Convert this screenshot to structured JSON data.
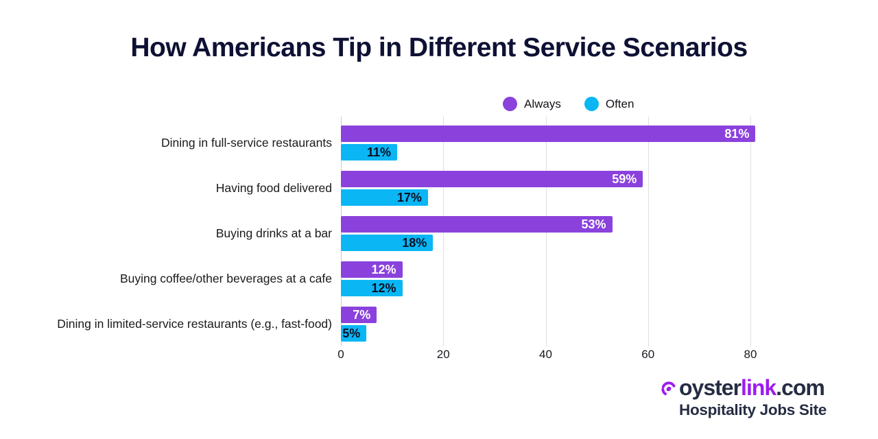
{
  "title": "How Americans Tip in Different Service Scenarios",
  "background_color": "#FFFFFF",
  "legend": {
    "items": [
      {
        "label": "Always",
        "color": "#8B42DC"
      },
      {
        "label": "Often",
        "color": "#0AB6F4"
      }
    ]
  },
  "chart_data": {
    "type": "bar",
    "orientation": "horizontal",
    "title": "How Americans Tip in Different Service Scenarios",
    "categories": [
      "Dining in full-service restaurants",
      "Having food delivered",
      "Buying drinks at a bar",
      "Buying coffee/other beverages at a cafe",
      "Dining in limited-service restaurants (e.g., fast-food)"
    ],
    "series": [
      {
        "name": "Always",
        "color": "#8B42DC",
        "label_color": "#FFFFFF",
        "values": [
          81,
          59,
          53,
          12,
          7
        ]
      },
      {
        "name": "Often",
        "color": "#0AB6F4",
        "label_color": "#0B0F23",
        "values": [
          11,
          17,
          18,
          12,
          5
        ]
      }
    ],
    "value_suffix": "%",
    "xlabel": "",
    "ylabel": "",
    "xlim": [
      0,
      88
    ],
    "ticks": [
      0,
      20,
      40,
      60,
      80
    ],
    "grid": true,
    "legend_position": "top"
  },
  "footer": {
    "logo": {
      "icon": "link-swoosh-icon",
      "icon_color": "#9E1BF0",
      "part1": "oyster",
      "part2": "link",
      "part3": ".com",
      "text_color": "#262D43",
      "accent_color": "#9E1BF0"
    },
    "tagline": "Hospitality Jobs Site"
  }
}
